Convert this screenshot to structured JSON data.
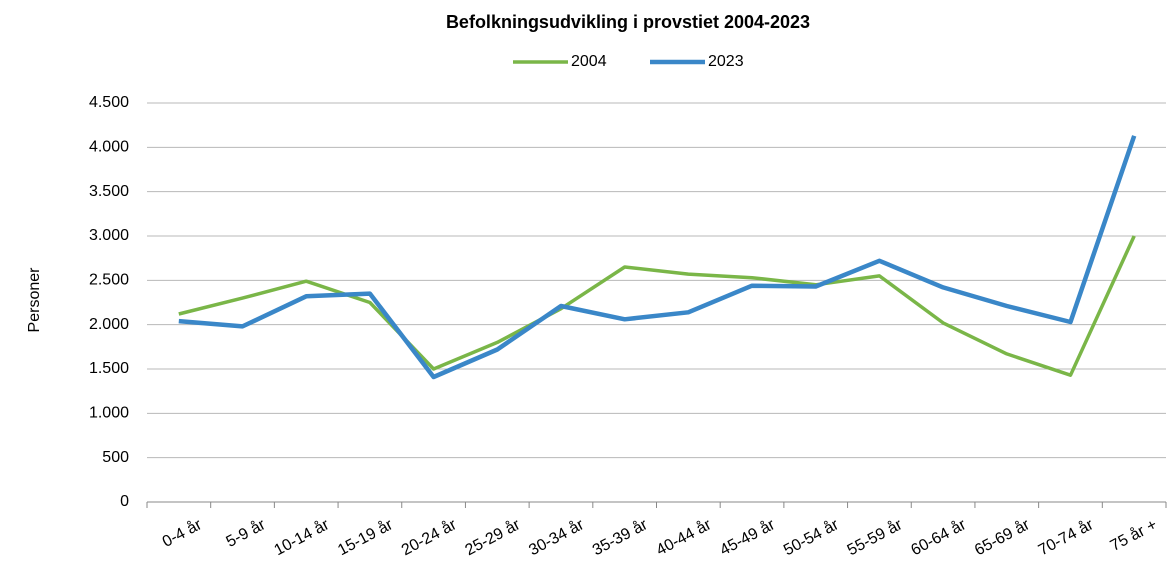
{
  "chart_data": {
    "type": "line",
    "title": "Befolkningsudvikling i provstiet 2004-2023",
    "ylabel": "Personer",
    "categories": [
      "0-4 år",
      "5-9 år",
      "10-14 år",
      "15-19 år",
      "20-24 år",
      "25-29 år",
      "30-34 år",
      "35-39 år",
      "40-44 år",
      "45-49 år",
      "50-54 år",
      "55-59 år",
      "60-64 år",
      "65-69 år",
      "70-74 år",
      "75 år +"
    ],
    "series": [
      {
        "name": "2004",
        "color": "#7ab648",
        "values": [
          2120,
          2300,
          2490,
          2250,
          1500,
          1800,
          2180,
          2650,
          2570,
          2530,
          2450,
          2550,
          2020,
          1670,
          1430,
          3000
        ]
      },
      {
        "name": "2023",
        "color": "#3a87c8",
        "values": [
          2040,
          1980,
          2320,
          2350,
          1410,
          1720,
          2210,
          2060,
          2140,
          2440,
          2430,
          2720,
          2420,
          2210,
          2030,
          4130
        ]
      }
    ],
    "ylim": [
      0,
      4500
    ],
    "yticks": [
      0,
      500,
      {
        "value": 1000,
        "label": "1.000"
      },
      {
        "value": 1500,
        "label": "1.500"
      },
      {
        "value": 2000,
        "label": "2.000"
      },
      {
        "value": 2500,
        "label": "2.500"
      },
      {
        "value": 3000,
        "label": "3.000"
      },
      {
        "value": 3500,
        "label": "3.500"
      },
      {
        "value": 4000,
        "label": "4.000"
      },
      {
        "value": 4500,
        "label": "4.500"
      }
    ],
    "grid": true,
    "legend": "top"
  }
}
